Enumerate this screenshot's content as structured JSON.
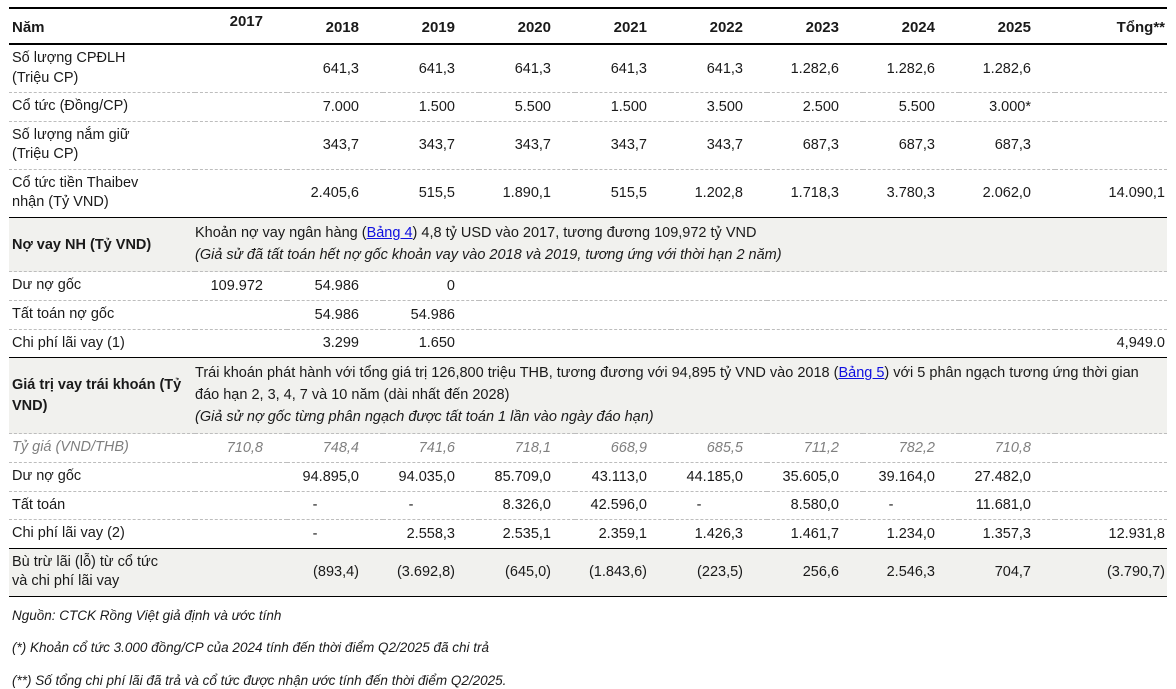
{
  "colors": {
    "link_blue": "#0f0fe0",
    "section_background": "#f1f1ee",
    "muted_gray": "#7f7f7f"
  },
  "table": {
    "header": {
      "label": "Năm",
      "years": [
        "2017",
        "2018",
        "2019",
        "2020",
        "2021",
        "2022",
        "2023",
        "2024",
        "2025"
      ],
      "total_label": "Tổng**"
    },
    "sections": {
      "bank_loan": {
        "label": "Nợ vay NH (Tỷ VND)",
        "desc_pre": "Khoản nợ vay ngân hàng (",
        "link": "Bảng 4",
        "desc_post": ") 4,8 tỷ USD vào 2017, tương đương 109,972 tỷ VND",
        "note": "(Giả sử đã tất toán hết nợ gốc khoản vay vào 2018 và 2019, tương ứng với thời hạn 2 năm)"
      },
      "bond": {
        "label": "Giá trị vay trái khoán (Tỷ VND)",
        "desc_pre": "Trái khoán phát hành với tổng giá trị 126,800 triệu THB, tương đương với 94,895 tỷ VND vào 2018 (",
        "link": "Bảng 5",
        "desc_post": ") với 5 phân ngạch tương ứng thời gian đáo hạn 2, 3, 4, 7 và 10 năm (dài nhất đến 2028)",
        "note": "(Giả sử nợ gốc từng phân ngạch được tất toán 1 lần vào ngày đáo hạn)"
      }
    },
    "rows": [
      {
        "label": "Số lượng CPĐLH",
        "label2": "(Triệu CP)",
        "values": [
          "",
          "641,3",
          "641,3",
          "641,3",
          "641,3",
          "641,3",
          "1.282,6",
          "1.282,6",
          "1.282,6",
          ""
        ]
      },
      {
        "label": "Cổ tức (Đồng/CP)",
        "values": [
          "",
          "7.000",
          "1.500",
          "5.500",
          "1.500",
          "3.500",
          "2.500",
          "5.500",
          "3.000*",
          ""
        ]
      },
      {
        "label": "Số lượng nắm giữ",
        "label2": "(Triệu CP)",
        "values": [
          "",
          "343,7",
          "343,7",
          "343,7",
          "343,7",
          "343,7",
          "687,3",
          "687,3",
          "687,3",
          ""
        ]
      },
      {
        "label": "Cổ tức tiền Thaibev",
        "label2": "nhận (Tỷ VND)",
        "values": [
          "",
          "2.405,6",
          "515,5",
          "1.890,1",
          "515,5",
          "1.202,8",
          "1.718,3",
          "3.780,3",
          "2.062,0",
          "14.090,1"
        ],
        "border_bottom": "solid"
      },
      {
        "type": "section",
        "section": "bank_loan"
      },
      {
        "label": "Dư nợ gốc",
        "values": [
          "109.972",
          "54.986",
          "0",
          "",
          "",
          "",
          "",
          "",
          "",
          ""
        ]
      },
      {
        "label": "Tất toán nợ gốc",
        "values": [
          "",
          "54.986",
          "54.986",
          "",
          "",
          "",
          "",
          "",
          "",
          ""
        ]
      },
      {
        "label": "Chi phí lãi vay (1)",
        "values": [
          "",
          "3.299",
          "1.650",
          "",
          "",
          "",
          "",
          "",
          "",
          "4,949.0"
        ],
        "border_bottom": "solid"
      },
      {
        "type": "section",
        "section": "bond"
      },
      {
        "label": "Tỷ giá (VND/THB)",
        "muted": true,
        "values": [
          "710,8",
          "748,4",
          "741,6",
          "718,1",
          "668,9",
          "685,5",
          "711,2",
          "782,2",
          "710,8",
          ""
        ]
      },
      {
        "label": "Dư nợ gốc",
        "values": [
          "",
          "94.895,0",
          "94.035,0",
          "85.709,0",
          "43.113,0",
          "44.185,0",
          "35.605,0",
          "39.164,0",
          "27.482,0",
          ""
        ]
      },
      {
        "label": "Tất toán",
        "values": [
          "",
          "-",
          "-",
          "8.326,0",
          "42.596,0",
          "-",
          "8.580,0",
          "-",
          "11.681,0",
          ""
        ]
      },
      {
        "label": "Chi phí lãi vay (2)",
        "values": [
          "",
          "-",
          "2.558,3",
          "2.535,1",
          "2.359,1",
          "1.426,3",
          "1.461,7",
          "1.234,0",
          "1.357,3",
          "12.931,8"
        ],
        "border_bottom": "solid"
      },
      {
        "label": "Bù trừ lãi (lỗ) từ cổ tức",
        "label2": "và chi phí lãi vay",
        "shaded": true,
        "values": [
          "",
          "(893,4)",
          "(3.692,8)",
          "(645,0)",
          "(1.843,6)",
          "(223,5)",
          "256,6",
          "2.546,3",
          "704,7",
          "(3.790,7)"
        ],
        "border_bottom": "solid"
      }
    ]
  },
  "footnotes": {
    "source": "Nguồn: CTCK Rồng Việt giả định và ước tính",
    "note1": "(*) Khoản cổ tức 3.000 đồng/CP của 2024 tính đến thời điểm Q2/2025 đã chi trả",
    "note2": "(**) Số tổng chi phí lãi đã trả và cổ tức được nhận ước tính đến thời điểm Q2/2025."
  }
}
